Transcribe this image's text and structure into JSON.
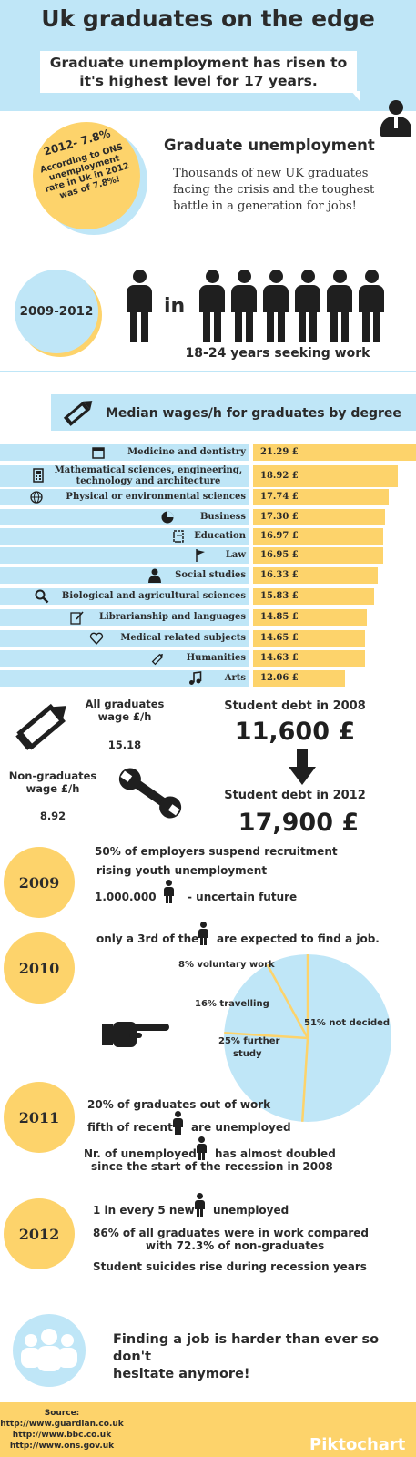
{
  "header": {
    "title": "Uk graduates on the edge",
    "subtitle_line1": "Graduate unemployment has risen to",
    "subtitle_line2": "it's highest level for 17 years."
  },
  "unemployment": {
    "badge_title": "2012- 7.8%",
    "badge_text": [
      "According to ONS",
      "unemployment",
      "rate in Uk in 2012",
      "was of 7.8%!"
    ],
    "heading": "Graduate unemployment",
    "text": [
      "Thousands of new UK graduates",
      "facing the crisis and  the toughest",
      "battle in a generation for jobs!"
    ]
  },
  "seeking": {
    "period": "2009-2012",
    "word_in": "in",
    "caption": "18-24 years seeking work"
  },
  "wages": {
    "heading": "Median wages/h for graduates by degree",
    "currency": "£"
  },
  "chart_data": {
    "type": "bar",
    "orientation": "horizontal",
    "title": "Median wages/h for graduates by degree",
    "categories": [
      "Medicine and dentistry",
      "Mathematical sciences, engineering, technology and architecture",
      "Physical or environmental sciences",
      "Business",
      "Education",
      "Law",
      "Social studies",
      "Biological and agricultural sciences",
      "Librarianship and languages",
      "Medical related subjects",
      "Humanities",
      "Arts"
    ],
    "category_lines": [
      [
        "Medicine and dentistry"
      ],
      [
        "Mathematical sciences, engineering,",
        "technology and architecture"
      ],
      [
        "Physical or environmental sciences"
      ],
      [
        "Business"
      ],
      [
        "Education"
      ],
      [
        "Law"
      ],
      [
        "Social studies"
      ],
      [
        "Biological and agricultural sciences"
      ],
      [
        "Librarianship and languages"
      ],
      [
        "Medical related subjects"
      ],
      [
        "Humanities"
      ],
      [
        "Arts"
      ]
    ],
    "values": [
      21.29,
      18.92,
      17.74,
      17.3,
      16.97,
      16.95,
      16.33,
      15.83,
      14.85,
      14.65,
      14.63,
      12.06
    ],
    "value_labels": [
      "21.29  £",
      "18.92  £",
      "17.74  £",
      "17.30  £",
      "16.97 £",
      "16.95 £",
      "16.33 £",
      "15.83 £",
      "14.85 £",
      "14.65 £",
      "14.63 £",
      "12.06 £"
    ],
    "icons": [
      "calendar-icon",
      "calculator-icon",
      "globe-icon",
      "pie-chart-icon",
      "notepad-icon",
      "flag-icon",
      "person-icon",
      "magnifier-icon",
      "edit-icon",
      "heart-icon",
      "pencil-icon",
      "music-note-icon"
    ]
  },
  "wage_compare": {
    "grad_label": [
      "All graduates",
      "wage £/h"
    ],
    "grad_value": "15.18",
    "nongrad_label": [
      "Non-graduates",
      "wage £/h"
    ],
    "nongrad_value": "8.92",
    "debt2008_label": "Student debt in 2008",
    "debt2008_value": "11,600 £",
    "debt2012_label": "Student debt in 2012",
    "debt2012_value": "17,900 £"
  },
  "timeline": {
    "y2009": {
      "year": "2009",
      "line1": "50% of employers suspend recruitment",
      "line2": "rising youth unemployment",
      "line3_a": "1.000.000",
      "line3_b": "- uncertain future"
    },
    "y2010": {
      "year": "2010",
      "line1_a": "only a 3rd of the",
      "line1_b": "are expected to find a job."
    },
    "y2011": {
      "year": "2011",
      "line1": "20% of graduates out of work",
      "line2_a": "fifth of recent",
      "line2_b": "are unemployed",
      "line3_a": "Nr. of unemployed",
      "line3_b": "has almost doubled",
      "line4": "since the start of the recession in 2008"
    },
    "y2012": {
      "year": "2012",
      "line1_a": "1 in every 5 new",
      "line1_b": "unemployed",
      "line2": "86% of all graduates were in work compared",
      "line3": "with 72.3% of non-graduates",
      "line4": "Student suicides rise during recession years"
    }
  },
  "pie_2010": {
    "type": "pie",
    "slices": [
      {
        "label": "8% voluntary work",
        "value": 8
      },
      {
        "label": "16% travelling",
        "value": 16
      },
      {
        "label": "25% further study",
        "value": 25
      },
      {
        "label": "51% not decided",
        "value": 51
      }
    ],
    "label_lines": {
      "voluntary": "8% voluntary work",
      "travelling": "16% travelling",
      "study1": "25% further",
      "study2": "study",
      "notdecided": "51% not decided"
    },
    "fill": "#bfe6f7",
    "stroke": "#fdd36b"
  },
  "closing": {
    "line1": "Finding a job is harder than ever so don't",
    "line2": "hesitate anymore!"
  },
  "footer": {
    "source_label": "Source:",
    "sources": [
      "http://www.guardian.co.uk",
      "http://www.bbc.co.uk",
      "http://www.ons.gov.uk"
    ],
    "brand": "Piktochart"
  },
  "colors": {
    "blue": "#bfe6f7",
    "yellow": "#fdd36b",
    "dark": "#1f1f1f"
  }
}
